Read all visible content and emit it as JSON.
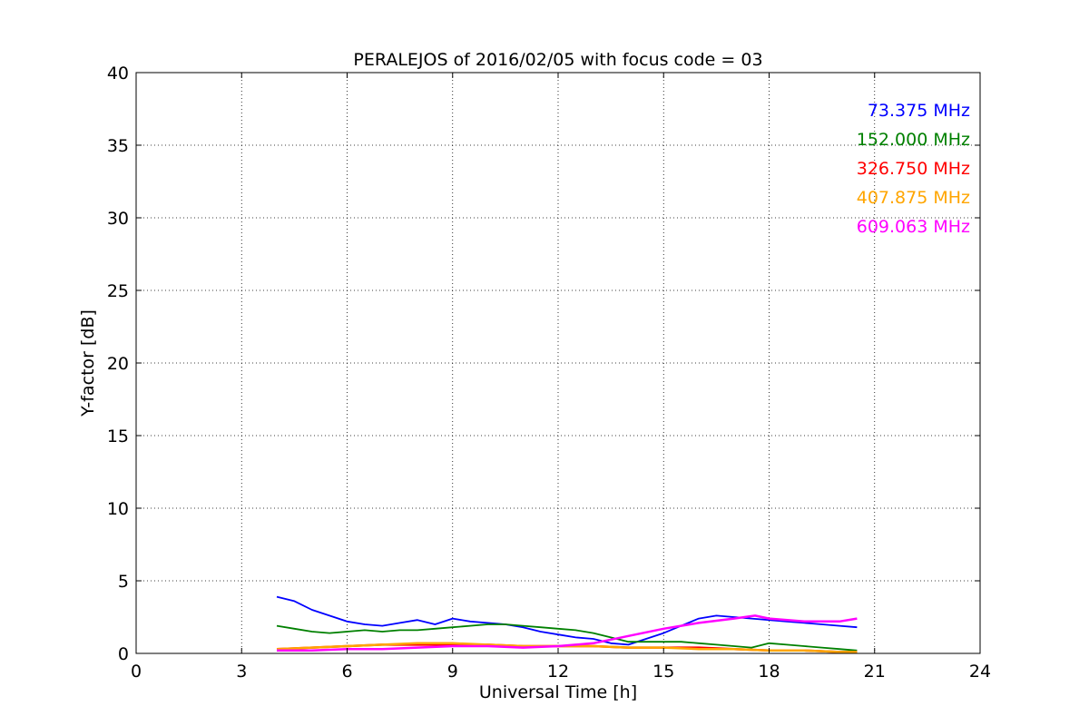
{
  "chart_data": {
    "type": "line",
    "title": "PERALEJOS of 2016/02/05 with focus code = 03",
    "xlabel": "Universal Time [h]",
    "ylabel": "Y-factor [dB]",
    "xlim": [
      0,
      24
    ],
    "ylim": [
      0,
      40
    ],
    "xticks": [
      0,
      3,
      6,
      9,
      12,
      15,
      18,
      21,
      24
    ],
    "yticks": [
      0,
      5,
      10,
      15,
      20,
      25,
      30,
      35,
      40
    ],
    "xtick_labels": [
      "0",
      "3",
      "6",
      "9",
      "12",
      "15",
      "18",
      "21",
      "24"
    ],
    "ytick_labels": [
      "0",
      "5",
      "10",
      "15",
      "20",
      "25",
      "30",
      "35",
      "40"
    ],
    "grid": true,
    "legend_placement": "top-right",
    "series": [
      {
        "name": "73.375 MHz",
        "color": "#0000ff",
        "x": [
          4.0,
          4.5,
          5.0,
          5.5,
          6.0,
          6.5,
          7.0,
          7.5,
          8.0,
          8.5,
          9.0,
          9.5,
          10.0,
          10.5,
          11.0,
          11.5,
          12.0,
          12.5,
          13.0,
          13.5,
          14.0,
          14.5,
          15.0,
          15.5,
          16.0,
          16.5,
          17.0,
          17.5,
          18.0,
          18.5,
          19.0,
          19.5,
          20.0,
          20.5
        ],
        "y": [
          3.9,
          3.6,
          3.0,
          2.6,
          2.2,
          2.0,
          1.9,
          2.1,
          2.3,
          2.0,
          2.4,
          2.2,
          2.1,
          2.0,
          1.8,
          1.5,
          1.3,
          1.1,
          1.0,
          0.7,
          0.6,
          1.0,
          1.4,
          1.9,
          2.4,
          2.6,
          2.5,
          2.4,
          2.3,
          2.2,
          2.1,
          2.0,
          1.9,
          1.8
        ]
      },
      {
        "name": "152.000 MHz",
        "color": "#008000",
        "x": [
          4.0,
          4.5,
          5.0,
          5.5,
          6.0,
          6.5,
          7.0,
          7.5,
          8.0,
          8.5,
          9.0,
          9.5,
          10.0,
          10.5,
          11.0,
          11.5,
          12.0,
          12.5,
          13.0,
          13.5,
          14.0,
          14.5,
          15.0,
          15.5,
          16.0,
          16.5,
          17.0,
          17.5,
          18.0,
          18.5,
          19.0,
          19.5,
          20.0,
          20.5
        ],
        "y": [
          1.9,
          1.7,
          1.5,
          1.4,
          1.5,
          1.6,
          1.5,
          1.6,
          1.6,
          1.7,
          1.8,
          1.9,
          2.0,
          2.0,
          1.9,
          1.8,
          1.7,
          1.6,
          1.4,
          1.1,
          0.8,
          0.8,
          0.8,
          0.8,
          0.7,
          0.6,
          0.5,
          0.4,
          0.7,
          0.6,
          0.5,
          0.4,
          0.3,
          0.2
        ]
      },
      {
        "name": "326.750 MHz",
        "color": "#ff0000",
        "x": [
          4.0,
          5.0,
          6.0,
          7.0,
          8.0,
          9.0,
          10.0,
          11.0,
          12.0,
          13.0,
          14.0,
          15.0,
          16.0,
          17.0,
          18.0,
          19.0,
          20.0,
          20.5
        ],
        "y": [
          0.3,
          0.4,
          0.5,
          0.6,
          0.6,
          0.6,
          0.6,
          0.5,
          0.5,
          0.5,
          0.4,
          0.4,
          0.4,
          0.3,
          0.2,
          0.2,
          0.1,
          0.1
        ]
      },
      {
        "name": "407.875 MHz",
        "color": "#ffa500",
        "x": [
          4.0,
          5.0,
          6.0,
          7.0,
          8.0,
          9.0,
          10.0,
          11.0,
          12.0,
          13.0,
          14.0,
          15.0,
          16.0,
          17.0,
          18.0,
          19.0,
          20.0,
          20.5
        ],
        "y": [
          0.3,
          0.4,
          0.5,
          0.6,
          0.7,
          0.7,
          0.6,
          0.5,
          0.5,
          0.5,
          0.4,
          0.4,
          0.3,
          0.3,
          0.2,
          0.2,
          0.1,
          0.1
        ]
      },
      {
        "name": "609.063 MHz",
        "color": "#ff00ff",
        "x": [
          4.0,
          5.0,
          6.0,
          7.0,
          8.0,
          9.0,
          10.0,
          11.0,
          12.0,
          13.0,
          14.0,
          15.0,
          16.0,
          17.0,
          17.6,
          18.0,
          19.0,
          20.0,
          20.5
        ],
        "y": [
          0.2,
          0.2,
          0.3,
          0.3,
          0.4,
          0.5,
          0.5,
          0.4,
          0.5,
          0.7,
          1.2,
          1.7,
          2.1,
          2.4,
          2.6,
          2.4,
          2.2,
          2.2,
          2.4
        ]
      }
    ]
  }
}
